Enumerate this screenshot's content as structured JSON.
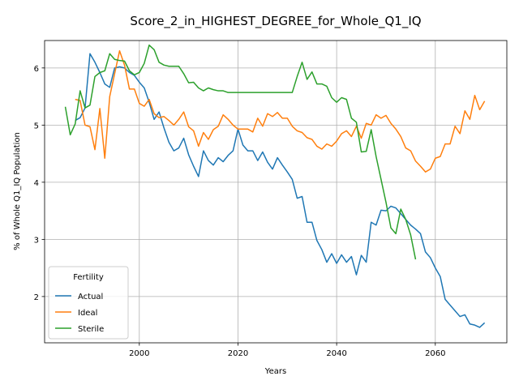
{
  "chart_data": {
    "type": "line",
    "title": "Score_2_in_HIGHEST_DEGREE_for_Whole_Q1_IQ",
    "xlabel": "Years",
    "ylabel": "% of Whole Q1_IQ Population",
    "x": [
      1985,
      1986,
      1987,
      1988,
      1989,
      1990,
      1991,
      1992,
      1993,
      1994,
      1995,
      1996,
      1997,
      1998,
      1999,
      2000,
      2001,
      2002,
      2003,
      2004,
      2005,
      2006,
      2007,
      2008,
      2009,
      2010,
      2011,
      2012,
      2013,
      2014,
      2015,
      2016,
      2017,
      2018,
      2019,
      2020,
      2021,
      2022,
      2023,
      2024,
      2025,
      2026,
      2027,
      2028,
      2029,
      2030,
      2031,
      2032,
      2033,
      2034,
      2035,
      2036,
      2037,
      2038,
      2039,
      2040,
      2041,
      2042,
      2043,
      2044,
      2045,
      2046,
      2047,
      2048,
      2049,
      2050,
      2051,
      2052,
      2053,
      2054,
      2055,
      2056,
      2057,
      2058,
      2059,
      2060,
      2061,
      2062,
      2063,
      2064,
      2065,
      2066,
      2067,
      2068,
      2069,
      2070
    ],
    "series": [
      {
        "name": "Actual",
        "color": "#1f77b4",
        "values": [
          null,
          null,
          5.08,
          5.13,
          5.3,
          6.25,
          6.1,
          5.92,
          5.72,
          5.66,
          6.0,
          6.02,
          6.0,
          5.92,
          5.87,
          5.75,
          5.65,
          5.4,
          5.1,
          5.23,
          4.95,
          4.7,
          4.55,
          4.6,
          4.77,
          4.48,
          4.28,
          4.1,
          4.55,
          4.38,
          4.3,
          4.43,
          4.36,
          4.47,
          4.55,
          4.93,
          4.65,
          4.55,
          4.55,
          4.38,
          4.53,
          4.35,
          4.23,
          4.43,
          4.3,
          4.18,
          4.05,
          3.72,
          3.75,
          3.3,
          3.3,
          2.98,
          2.82,
          2.6,
          2.75,
          2.58,
          2.73,
          2.6,
          2.7,
          2.38,
          2.72,
          2.6,
          3.3,
          3.25,
          3.51,
          3.5,
          3.58,
          3.55,
          3.45,
          3.35,
          3.25,
          3.18,
          3.1,
          2.78,
          2.68,
          2.5,
          2.35,
          1.95,
          1.85,
          1.75,
          1.65,
          1.68,
          1.52,
          1.5,
          1.46,
          1.54
        ]
      },
      {
        "name": "Ideal",
        "color": "#ff7f0e",
        "values": [
          null,
          null,
          5.45,
          5.43,
          5.0,
          4.97,
          4.57,
          5.29,
          4.42,
          5.5,
          5.9,
          6.3,
          6.05,
          5.63,
          5.63,
          5.38,
          5.33,
          5.45,
          5.2,
          5.13,
          5.15,
          5.08,
          5.0,
          5.1,
          5.23,
          4.97,
          4.9,
          4.63,
          4.87,
          4.75,
          4.92,
          4.98,
          5.18,
          5.1,
          5.0,
          4.93,
          4.93,
          4.93,
          4.88,
          5.12,
          4.98,
          5.2,
          5.15,
          5.22,
          5.12,
          5.12,
          4.98,
          4.9,
          4.87,
          4.78,
          4.75,
          4.63,
          4.58,
          4.67,
          4.63,
          4.72,
          4.85,
          4.9,
          4.8,
          4.98,
          4.77,
          5.03,
          5.0,
          5.18,
          5.12,
          5.17,
          5.03,
          4.93,
          4.8,
          4.6,
          4.55,
          4.37,
          4.28,
          4.18,
          4.23,
          4.42,
          4.45,
          4.67,
          4.67,
          4.98,
          4.85,
          5.25,
          5.1,
          5.52,
          5.27,
          5.42
        ]
      },
      {
        "name": "Sterile",
        "color": "#2ca02c",
        "values": [
          5.32,
          4.83,
          5.02,
          5.6,
          5.3,
          5.35,
          5.85,
          5.92,
          5.95,
          6.25,
          6.15,
          6.13,
          6.12,
          5.95,
          5.88,
          5.92,
          6.08,
          6.4,
          6.32,
          6.1,
          6.05,
          6.03,
          6.03,
          6.03,
          5.9,
          5.74,
          5.75,
          5.65,
          5.6,
          5.65,
          5.62,
          5.6,
          5.6,
          5.57,
          5.57,
          5.57,
          5.57,
          5.57,
          5.57,
          5.57,
          5.57,
          5.57,
          5.57,
          5.57,
          5.57,
          5.57,
          5.57,
          5.85,
          6.1,
          5.8,
          5.93,
          5.72,
          5.72,
          5.68,
          5.48,
          5.4,
          5.48,
          5.45,
          5.12,
          5.05,
          4.53,
          4.54,
          4.92,
          4.45,
          4.05,
          3.65,
          3.2,
          3.1,
          3.53,
          3.35,
          3.08,
          2.65,
          null,
          null,
          null,
          null,
          null,
          null,
          null,
          null,
          null,
          null,
          null,
          null,
          null,
          null
        ]
      }
    ],
    "xlim": [
      1980.8,
      2074.5
    ],
    "xticks": [
      2000,
      2020,
      2040,
      2060
    ],
    "ylim": [
      1.19,
      6.48
    ],
    "yticks": [
      2,
      3,
      4,
      5,
      6
    ],
    "grid": true,
    "legend_title": "Fertility",
    "legend_loc": "lower left"
  }
}
